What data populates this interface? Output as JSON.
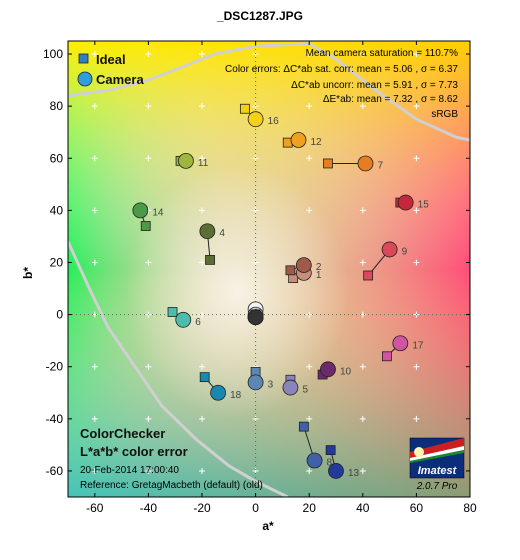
{
  "chart_data": {
    "type": "scatter",
    "title": "_DSC1287.JPG",
    "xlabel": "a*",
    "ylabel": "b*",
    "xlim": [
      -70,
      80
    ],
    "ylim": [
      -70,
      105
    ],
    "xticks": [
      "-60",
      "-40",
      "-20",
      "0",
      "20",
      "40",
      "60",
      "80"
    ],
    "yticks": [
      "-60",
      "-40",
      "-20",
      "0",
      "20",
      "40",
      "60",
      "80",
      "100"
    ],
    "legend": {
      "position": "top-left",
      "entries": [
        {
          "name": "Ideal",
          "marker": "square",
          "color": "#2f7fc4"
        },
        {
          "name": "Camera",
          "marker": "circle",
          "color": "#2f9fdc"
        }
      ]
    },
    "stats": [
      "Mean camera saturation = 110.7%",
      "Color errors:  ΔC*ab sat. corr:  mean = 5.06 ,  σ = 6.37",
      "ΔC*ab uncorr:  mean = 5.91 ,  σ = 7.73",
      "ΔE*ab:  mean = 7.32 ,  σ = 8.62",
      "sRGB"
    ],
    "panel": {
      "title_line1": "ColorChecker",
      "title_line2": "L*a*b* color error",
      "date": "20-Feb-2014 17:00:40",
      "reference": "Reference: GretagMacbeth (default) (old)"
    },
    "logo": {
      "name": "Imatest",
      "version": "2.0.7  Pro"
    },
    "patches": [
      {
        "id": "1",
        "ideal": [
          14,
          14
        ],
        "camera": [
          18,
          16
        ],
        "color": "#c98e7a"
      },
      {
        "id": "2",
        "ideal": [
          13,
          17
        ],
        "camera": [
          18,
          19
        ],
        "color": "#a05a4a"
      },
      {
        "id": "3",
        "ideal": [
          0,
          -22
        ],
        "camera": [
          0,
          -26
        ],
        "color": "#5d87b3"
      },
      {
        "id": "4",
        "ideal": [
          -17,
          21
        ],
        "camera": [
          -18,
          32
        ],
        "color": "#5b6e33"
      },
      {
        "id": "5",
        "ideal": [
          13,
          -25
        ],
        "camera": [
          13,
          -28
        ],
        "color": "#8a85b8"
      },
      {
        "id": "6",
        "ideal": [
          -31,
          1
        ],
        "camera": [
          -27,
          -2
        ],
        "color": "#4dbcaa"
      },
      {
        "id": "7",
        "ideal": [
          27,
          58
        ],
        "camera": [
          41,
          58
        ],
        "color": "#e87d20"
      },
      {
        "id": "8",
        "ideal": [
          18,
          -43
        ],
        "camera": [
          22,
          -56
        ],
        "color": "#4060a8"
      },
      {
        "id": "9",
        "ideal": [
          42,
          15
        ],
        "camera": [
          50,
          25
        ],
        "color": "#d84a5a"
      },
      {
        "id": "10",
        "ideal": [
          25,
          -23
        ],
        "camera": [
          27,
          -21
        ],
        "color": "#6a2a6c"
      },
      {
        "id": "11",
        "ideal": [
          -28,
          59
        ],
        "camera": [
          -26,
          59
        ],
        "color": "#9db63c"
      },
      {
        "id": "12",
        "ideal": [
          12,
          66
        ],
        "camera": [
          16,
          67
        ],
        "color": "#f0a020"
      },
      {
        "id": "13",
        "ideal": [
          28,
          -52
        ],
        "camera": [
          30,
          -60
        ],
        "color": "#243a98"
      },
      {
        "id": "14",
        "ideal": [
          -41,
          34
        ],
        "camera": [
          -43,
          40
        ],
        "color": "#4a9a48"
      },
      {
        "id": "15",
        "ideal": [
          54,
          43
        ],
        "camera": [
          56,
          43
        ],
        "color": "#c4283a"
      },
      {
        "id": "16",
        "ideal": [
          -4,
          79
        ],
        "camera": [
          0,
          75
        ],
        "color": "#f4d018"
      },
      {
        "id": "17",
        "ideal": [
          49,
          -16
        ],
        "camera": [
          54,
          -11
        ],
        "color": "#d054a0"
      },
      {
        "id": "18",
        "ideal": [
          -19,
          -24
        ],
        "camera": [
          -14,
          -30
        ],
        "color": "#1888b0"
      },
      {
        "id": "19",
        "ideal": [
          0,
          0
        ],
        "camera": [
          0,
          2
        ],
        "color": "#f4f4f4"
      },
      {
        "id": "20",
        "ideal": [
          0,
          0
        ],
        "camera": [
          0,
          0
        ],
        "color": "#c8c8c8"
      },
      {
        "id": "21",
        "ideal": [
          0,
          0
        ],
        "camera": [
          0,
          -1
        ],
        "color": "#a0a0a0"
      },
      {
        "id": "22",
        "ideal": [
          0,
          0
        ],
        "camera": [
          0,
          -1
        ],
        "color": "#787878"
      },
      {
        "id": "23",
        "ideal": [
          0,
          0
        ],
        "camera": [
          0,
          -1
        ],
        "color": "#555555"
      },
      {
        "id": "24",
        "ideal": [
          0,
          0
        ],
        "camera": [
          0,
          -1
        ],
        "color": "#333333"
      }
    ]
  }
}
